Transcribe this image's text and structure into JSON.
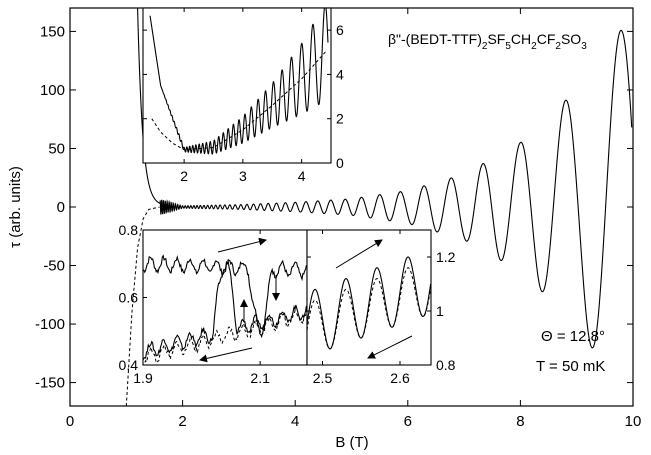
{
  "chart_data": [
    {
      "id": "main",
      "type": "line",
      "title": "",
      "xlabel": "B (T)",
      "ylabel": "τ (arb. units)",
      "xlim": [
        0,
        10
      ],
      "ylim": [
        -170,
        170
      ],
      "xticks": [
        0,
        2,
        4,
        6,
        8,
        10
      ],
      "yticks": [
        -150,
        -100,
        -50,
        0,
        50,
        100,
        150
      ],
      "grid": false,
      "legend": "none",
      "series": [
        {
          "style": "solid",
          "x": [
            1.2,
            1.3,
            1.4,
            1.5,
            2.0,
            3.0,
            4.0,
            5.0,
            6.0,
            7.0,
            8.0,
            9.0,
            9.4,
            9.95
          ],
          "envelope": [
            170,
            60,
            20,
            8,
            1,
            2,
            4,
            7,
            14,
            28,
            55,
            100,
            130,
            160
          ]
        },
        {
          "style": "dashed",
          "x": [
            1.0,
            1.1,
            1.2,
            1.3,
            1.4,
            1.6
          ],
          "y": [
            -170,
            -90,
            -35,
            -10,
            -2,
            0
          ]
        }
      ],
      "annotations": [
        {
          "compound": {
            "prefix": "β\"-(BEDT-TTF)",
            "sub1": "2",
            "mid1": "SF",
            "sub2": "5",
            "mid2": "CH",
            "sub3": "2",
            "mid3": "CF",
            "sub4": "2",
            "mid4": "SO",
            "sub5": "3"
          }
        },
        {
          "text": "Θ = 12.8°"
        },
        {
          "text": "T = 50 mK"
        }
      ]
    },
    {
      "id": "inset-top",
      "type": "line",
      "xlim": [
        1.3,
        4.5
      ],
      "ylim": [
        0,
        7
      ],
      "xticks": [
        2,
        3,
        4
      ],
      "yticks": [
        0,
        2,
        4,
        6
      ],
      "grid": false,
      "series": [
        {
          "style": "solid",
          "x": [
            1.4,
            1.6,
            2.0,
            2.5,
            3.0,
            3.5,
            4.0,
            4.4
          ],
          "y": [
            7,
            3.5,
            0.6,
            0.7,
            1.5,
            2.6,
            3.8,
            5.0
          ],
          "oscillation_amplitude": [
            0,
            0,
            0.1,
            0.3,
            0.6,
            1.0,
            1.6,
            2.2
          ]
        },
        {
          "style": "dashed",
          "x": [
            1.45,
            1.6,
            1.8,
            2.0,
            2.5,
            3.0,
            3.5,
            4.0,
            4.4
          ],
          "y": [
            2.0,
            1.4,
            0.9,
            0.6,
            0.7,
            1.5,
            2.6,
            3.8,
            5.0
          ]
        }
      ]
    },
    {
      "id": "inset-bottom-left",
      "type": "line",
      "xlim": [
        1.9,
        2.18
      ],
      "ylim": [
        0.4,
        0.8
      ],
      "xticks": [
        1.9,
        2.1
      ],
      "yticks": [
        0.4,
        0.6,
        0.8
      ],
      "grid": false,
      "series": [
        {
          "style": "solid",
          "x": [
            1.9,
            2.18
          ],
          "y": [
            0.7,
            0.68
          ]
        },
        {
          "style": "solid",
          "x": [
            1.9,
            2.18
          ],
          "y": [
            0.44,
            0.56
          ]
        },
        {
          "style": "dashed",
          "x": [
            1.9,
            2.18
          ],
          "y": [
            0.42,
            0.55
          ]
        }
      ]
    },
    {
      "id": "inset-bottom-right",
      "type": "line",
      "xlim": [
        2.48,
        2.64
      ],
      "ylim": [
        0.8,
        1.3
      ],
      "xticks": [
        2.5,
        2.6
      ],
      "yticks": [
        0.8,
        1,
        1.2
      ],
      "grid": false,
      "series": [
        {
          "style": "solid",
          "x": [
            2.48,
            2.64
          ],
          "y": [
            0.9,
            1.22
          ],
          "amplitude": 0.12
        },
        {
          "style": "dashed",
          "x": [
            2.48,
            2.64
          ],
          "y": [
            0.86,
            1.18
          ],
          "amplitude": 0.1
        }
      ]
    }
  ]
}
